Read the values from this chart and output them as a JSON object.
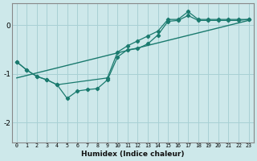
{
  "xlabel": "Humidex (Indice chaleur)",
  "background_color": "#cde8ea",
  "grid_color": "#a8d0d4",
  "line_color": "#1a7a6e",
  "xlim": [
    -0.5,
    23.5
  ],
  "ylim": [
    -2.4,
    0.45
  ],
  "xticks": [
    0,
    1,
    2,
    3,
    4,
    5,
    6,
    7,
    8,
    9,
    10,
    11,
    12,
    13,
    14,
    15,
    16,
    17,
    18,
    19,
    20,
    21,
    22,
    23
  ],
  "yticks": [
    0,
    -1,
    -2
  ],
  "series_lower": [
    [
      0,
      -0.75
    ],
    [
      1,
      -0.92
    ],
    [
      2,
      -1.05
    ],
    [
      3,
      -1.12
    ],
    [
      4,
      -1.22
    ],
    [
      5,
      -1.5
    ],
    [
      6,
      -1.35
    ],
    [
      7,
      -1.32
    ],
    [
      8,
      -1.3
    ],
    [
      9,
      -1.12
    ],
    [
      10,
      -0.65
    ],
    [
      11,
      -0.5
    ],
    [
      12,
      -0.48
    ],
    [
      13,
      -0.38
    ],
    [
      14,
      -0.2
    ],
    [
      15,
      0.08
    ],
    [
      16,
      0.1
    ],
    [
      17,
      0.2
    ],
    [
      18,
      0.1
    ],
    [
      19,
      0.1
    ],
    [
      20,
      0.1
    ],
    [
      21,
      0.1
    ],
    [
      22,
      0.1
    ],
    [
      23,
      0.12
    ]
  ],
  "series_upper": [
    [
      0,
      -0.75
    ],
    [
      1,
      -0.92
    ],
    [
      2,
      -1.05
    ],
    [
      3,
      -1.12
    ],
    [
      4,
      -1.22
    ],
    [
      9,
      -1.08
    ],
    [
      10,
      -0.55
    ],
    [
      11,
      -0.42
    ],
    [
      12,
      -0.32
    ],
    [
      13,
      -0.22
    ],
    [
      14,
      -0.12
    ],
    [
      15,
      0.12
    ],
    [
      16,
      0.12
    ],
    [
      17,
      0.28
    ],
    [
      18,
      0.12
    ],
    [
      19,
      0.12
    ],
    [
      20,
      0.12
    ],
    [
      21,
      0.12
    ],
    [
      22,
      0.12
    ],
    [
      23,
      0.12
    ]
  ],
  "regression_line": [
    [
      0,
      -1.08
    ],
    [
      23,
      0.1
    ]
  ]
}
